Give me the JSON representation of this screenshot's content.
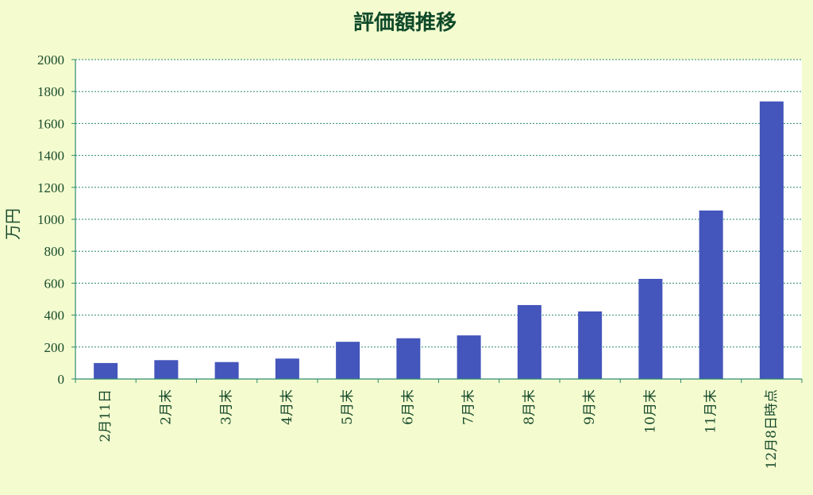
{
  "chart_data": {
    "type": "bar",
    "title": "評価額推移",
    "xlabel": "",
    "ylabel": "万円",
    "ylim": [
      0,
      2000
    ],
    "yticks": [
      0,
      200,
      400,
      600,
      800,
      1000,
      1200,
      1400,
      1600,
      1800,
      2000
    ],
    "grid": true,
    "legend": "none",
    "categories": [
      "2月11日",
      "2月末",
      "3月末",
      "4月末",
      "5月末",
      "6月末",
      "7月末",
      "8月末",
      "9月末",
      "10月末",
      "11月末",
      "12月8日時点"
    ],
    "values": [
      100,
      118,
      106,
      128,
      233,
      255,
      273,
      463,
      423,
      627,
      1055,
      1738
    ],
    "colors": {
      "background": "#f4fccf",
      "plot_area": "#ffffff",
      "bar": "#4455bb",
      "axis": "#2e8a6e",
      "grid": "#2e8a6e",
      "text": "#184a2c"
    }
  }
}
